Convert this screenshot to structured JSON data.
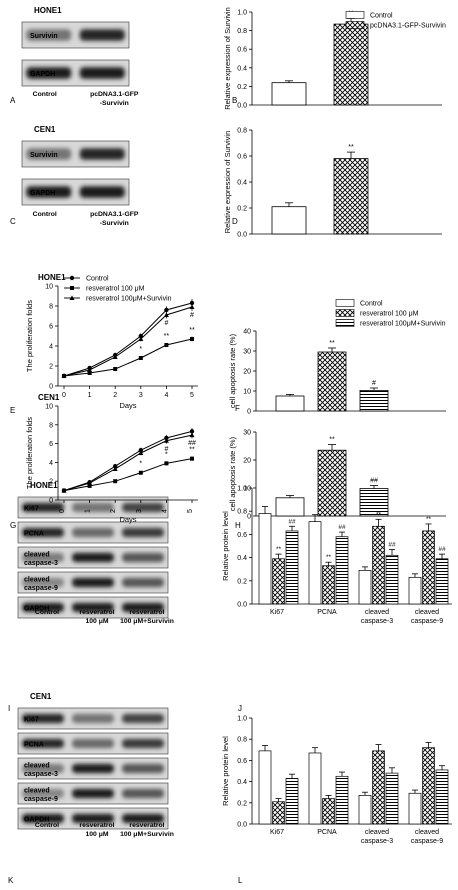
{
  "panel_letters": {
    "A": "A",
    "B": "B",
    "C": "C",
    "D": "D",
    "E": "E",
    "F": "F",
    "G": "G",
    "H": "H",
    "I": "I",
    "J": "J",
    "K": "K",
    "L": "L"
  },
  "blots": [
    {
      "id": "A",
      "cell_line": "HONE1",
      "rows": [
        {
          "label": "Survivin",
          "bands": [
            0.45,
            0.85
          ]
        },
        {
          "label": "GAPDH",
          "bands": [
            0.9,
            0.9
          ]
        }
      ],
      "lanes": [
        {
          "lines": [
            "Control"
          ]
        },
        {
          "lines": [
            "pcDNA3.1-GFP",
            "-Survivin"
          ]
        }
      ]
    },
    {
      "id": "C",
      "cell_line": "CEN1",
      "rows": [
        {
          "label": "Survivin",
          "bands": [
            0.45,
            0.85
          ]
        },
        {
          "label": "GAPDH",
          "bands": [
            0.9,
            0.9
          ]
        }
      ],
      "lanes": [
        {
          "lines": [
            "Control"
          ]
        },
        {
          "lines": [
            "pcDNA3.1-GFP",
            "-Survivin"
          ]
        }
      ]
    },
    {
      "id": "I",
      "cell_line": "HONE1",
      "rows": [
        {
          "label": "Ki67",
          "bands": [
            0.85,
            0.45,
            0.7
          ]
        },
        {
          "label": "PCNA",
          "bands": [
            0.85,
            0.5,
            0.75
          ]
        },
        {
          "label": "cleaved caspase-3",
          "lines": [
            "cleaved",
            "caspase-3"
          ],
          "bands": [
            0.4,
            0.9,
            0.6
          ]
        },
        {
          "label": "cleaved caspase-9",
          "lines": [
            "cleaved",
            "caspase-9"
          ],
          "bands": [
            0.35,
            0.9,
            0.6
          ]
        },
        {
          "label": "GAPDH",
          "bands": [
            0.9,
            0.9,
            0.9
          ]
        }
      ],
      "lanes": [
        {
          "lines": [
            "Control"
          ]
        },
        {
          "lines": [
            "resveratrol",
            "100 μM"
          ]
        },
        {
          "lines": [
            "resveratrol",
            "100 μM+Survivin"
          ]
        }
      ]
    },
    {
      "id": "K",
      "cell_line": "CEN1",
      "rows": [
        {
          "label": "Ki67",
          "bands": [
            0.85,
            0.45,
            0.7
          ]
        },
        {
          "label": "PCNA",
          "bands": [
            0.85,
            0.5,
            0.75
          ]
        },
        {
          "label": "cleaved caspase-3",
          "lines": [
            "cleaved",
            "caspase-3"
          ],
          "bands": [
            0.4,
            0.9,
            0.6
          ]
        },
        {
          "label": "cleaved caspase-9",
          "lines": [
            "cleaved",
            "caspase-9"
          ],
          "bands": [
            0.35,
            0.9,
            0.6
          ]
        },
        {
          "label": "GAPDH",
          "bands": [
            0.9,
            0.9,
            0.9
          ]
        }
      ],
      "lanes": [
        {
          "lines": [
            "Control"
          ]
        },
        {
          "lines": [
            "resveratrol",
            "100 μM"
          ]
        },
        {
          "lines": [
            "resveratrol",
            "100 μM+Survivin"
          ]
        }
      ]
    }
  ],
  "legend_survivin": [
    "Control",
    "pcDNA3.1-GFP-Survivin"
  ],
  "legend_resveratrol": [
    "Control",
    "resveratrol 100 μM",
    "resveratrol 100μM+Survivin"
  ],
  "chart_data": [
    {
      "id": "B",
      "type": "bar",
      "ylabel": "Relative expression of Survivin",
      "ylim": [
        0,
        1.0
      ],
      "yticks": [
        0.0,
        0.2,
        0.4,
        0.6,
        0.8,
        1.0
      ],
      "series": [
        {
          "name": "Control",
          "values": [
            0.24
          ],
          "errors": [
            0.02
          ]
        },
        {
          "name": "pcDNA3.1-GFP-Survivin",
          "values": [
            0.87
          ],
          "errors": [
            0.06
          ]
        }
      ],
      "annotations": [
        "",
        "**"
      ],
      "legend_position": "top-right"
    },
    {
      "id": "D",
      "type": "bar",
      "ylabel": "Relative expression of Survivin",
      "ylim": [
        0,
        0.8
      ],
      "yticks": [
        0.0,
        0.2,
        0.4,
        0.6,
        0.8
      ],
      "series": [
        {
          "name": "Control",
          "values": [
            0.21
          ],
          "errors": [
            0.03
          ]
        },
        {
          "name": "pcDNA3.1-GFP-Survivin",
          "values": [
            0.58
          ],
          "errors": [
            0.05
          ]
        }
      ],
      "annotations": [
        "",
        "**"
      ]
    },
    {
      "id": "E",
      "type": "line",
      "title": "HONE1",
      "xlabel": "Days",
      "ylabel": "The proliferation folds",
      "x": [
        0,
        1,
        2,
        3,
        4,
        5
      ],
      "xlim": [
        0,
        5
      ],
      "ylim": [
        0,
        10
      ],
      "yticks": [
        0,
        2,
        4,
        6,
        8,
        10
      ],
      "series": [
        {
          "name": "Control",
          "values": [
            1.0,
            1.8,
            3.1,
            5.0,
            7.6,
            8.3
          ]
        },
        {
          "name": "resveratrol 100 μM",
          "values": [
            1.0,
            1.3,
            1.7,
            2.8,
            4.1,
            4.7
          ]
        },
        {
          "name": "resveratrol 100μM+Survivin",
          "values": [
            1.0,
            1.6,
            2.9,
            4.7,
            7.1,
            7.9
          ]
        }
      ],
      "annotations": [
        {
          "x": 3,
          "text": "*"
        },
        {
          "x": 4,
          "text": "**"
        },
        {
          "x": 4,
          "text": "#"
        },
        {
          "x": 5,
          "text": "**"
        },
        {
          "x": 5,
          "text": "#"
        }
      ],
      "legend_position": "top-left"
    },
    {
      "id": "F",
      "type": "bar",
      "ylabel": "cell apoptosis rate (%)",
      "ylim": [
        0,
        40
      ],
      "yticks": [
        0,
        10,
        20,
        30,
        40
      ],
      "series": [
        {
          "name": "Control",
          "values": [
            7.5
          ],
          "errors": [
            0.8
          ]
        },
        {
          "name": "resveratrol 100 μM",
          "values": [
            29.5
          ],
          "errors": [
            2.0
          ]
        },
        {
          "name": "resveratrol 100μM+Survivin",
          "values": [
            10.3
          ],
          "errors": [
            1.2
          ]
        }
      ],
      "annotations": [
        "",
        "**",
        "#"
      ],
      "legend_position": "top-right"
    },
    {
      "id": "G",
      "type": "line",
      "title": "CEN1",
      "xlabel": "Days",
      "ylabel": "The proliferation folds",
      "x": [
        0,
        1,
        2,
        3,
        4,
        5
      ],
      "xlim": [
        0,
        5
      ],
      "ylim": [
        0,
        10
      ],
      "yticks": [
        0,
        2,
        4,
        6,
        8,
        10
      ],
      "series": [
        {
          "name": "Control",
          "values": [
            1.0,
            1.9,
            3.6,
            5.3,
            6.6,
            7.3
          ]
        },
        {
          "name": "resveratrol 100 μM",
          "values": [
            1.0,
            1.5,
            2.0,
            2.9,
            3.9,
            4.4
          ]
        },
        {
          "name": "resveratrol 100μM+Survivin",
          "values": [
            1.0,
            1.8,
            3.3,
            5.0,
            6.3,
            6.9
          ]
        }
      ],
      "annotations": [
        {
          "x": 3,
          "text": "*"
        },
        {
          "x": 4,
          "text": "*"
        },
        {
          "x": 4,
          "text": "#"
        },
        {
          "x": 5,
          "text": "**"
        },
        {
          "x": 5,
          "text": "##"
        }
      ]
    },
    {
      "id": "H",
      "type": "bar",
      "ylabel": "cell apoptosis rate (%)",
      "ylim": [
        0,
        30
      ],
      "yticks": [
        0,
        10,
        20,
        30
      ],
      "series": [
        {
          "name": "Control",
          "values": [
            6.5
          ],
          "errors": [
            0.8
          ]
        },
        {
          "name": "resveratrol 100 μM",
          "values": [
            23.5
          ],
          "errors": [
            2.0
          ]
        },
        {
          "name": "resveratrol 100μM+Survivin",
          "values": [
            9.8
          ],
          "errors": [
            1.1
          ]
        }
      ],
      "annotations": [
        "",
        "**",
        "##"
      ]
    },
    {
      "id": "J",
      "type": "bar",
      "ylabel": "Relative protein level",
      "categories": [
        "Ki67",
        "PCNA",
        "cleaved caspase-3",
        "cleaved caspase-9"
      ],
      "ylim": [
        0,
        1.0
      ],
      "yticks": [
        0.0,
        0.2,
        0.4,
        0.6,
        0.8,
        1.0
      ],
      "series": [
        {
          "name": "Control",
          "values": [
            0.78,
            0.71,
            0.29,
            0.23
          ],
          "errors": [
            0.06,
            0.06,
            0.03,
            0.03
          ]
        },
        {
          "name": "resveratrol 100 μM",
          "values": [
            0.39,
            0.33,
            0.67,
            0.63
          ],
          "errors": [
            0.04,
            0.03,
            0.06,
            0.06
          ]
        },
        {
          "name": "resveratrol 100μM+Survivin",
          "values": [
            0.63,
            0.58,
            0.42,
            0.39
          ],
          "errors": [
            0.04,
            0.04,
            0.05,
            0.04
          ]
        }
      ],
      "annotations": [
        {
          "category": "Ki67",
          "labels": [
            "",
            "**",
            "##"
          ]
        },
        {
          "category": "PCNA",
          "labels": [
            "",
            "**",
            "##"
          ]
        },
        {
          "category": "cleaved caspase-3",
          "labels": [
            "",
            "**",
            "##"
          ]
        },
        {
          "category": "cleaved caspase-9",
          "labels": [
            "",
            "**",
            "##"
          ]
        }
      ]
    },
    {
      "id": "L",
      "type": "bar",
      "ylabel": "Relative protein level",
      "categories": [
        "Ki67",
        "PCNA",
        "cleaved caspase-3",
        "cleaved caspase-9"
      ],
      "ylim": [
        0,
        1.0
      ],
      "yticks": [
        0.0,
        0.2,
        0.4,
        0.6,
        0.8,
        1.0
      ],
      "series": [
        {
          "name": "Control",
          "values": [
            0.69,
            0.67,
            0.27,
            0.29
          ],
          "errors": [
            0.05,
            0.05,
            0.03,
            0.03
          ]
        },
        {
          "name": "resveratrol 100 μM",
          "values": [
            0.21,
            0.24,
            0.69,
            0.72
          ],
          "errors": [
            0.03,
            0.03,
            0.06,
            0.05
          ]
        },
        {
          "name": "resveratrol 100μM+Survivin",
          "values": [
            0.43,
            0.45,
            0.48,
            0.51
          ],
          "errors": [
            0.04,
            0.04,
            0.05,
            0.04
          ]
        }
      ],
      "annotations": []
    }
  ]
}
